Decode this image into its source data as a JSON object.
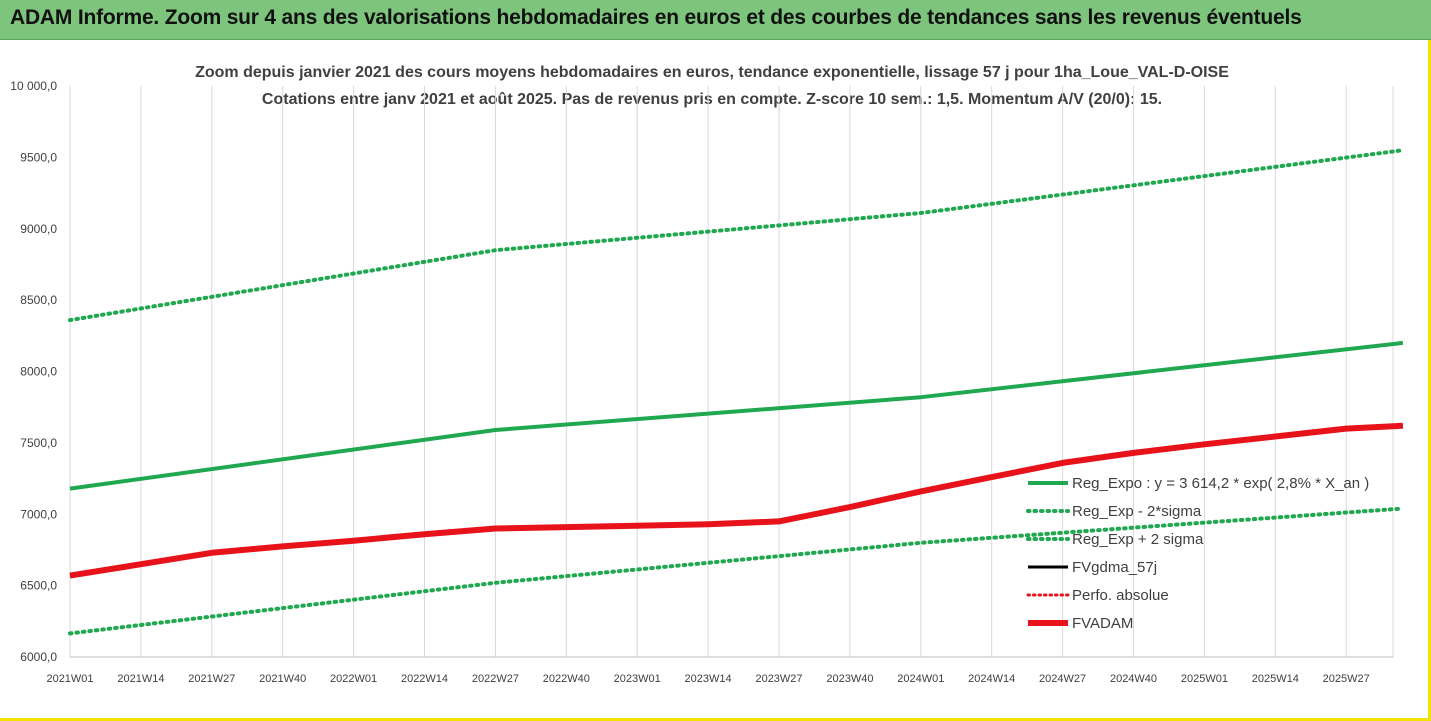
{
  "banner": {
    "title": "ADAM Informe. Zoom sur 4 ans des valorisations hebdomadaires en euros et des courbes de tendances sans les revenus éventuels"
  },
  "colors": {
    "banner_bg": "#7dc47d",
    "border": "#f2e200",
    "green": "#1fa84f",
    "red": "#e8131a",
    "black": "#000000",
    "grid": "#d9d9d9"
  },
  "chart_data": {
    "type": "line",
    "title_line1": "Zoom depuis janvier 2021 des cours moyens hebdomadaires en euros, tendance exponentielle, lissage 57 j pour 1ha_Loue_VAL-D-OISE",
    "title_line2": "Cotations entre janv 2021 et août 2025. Pas de revenus pris en compte. Z-score 10 sem.: 1,5. Momentum A/V (20/0): 15.",
    "x_tick_labels": [
      "2021W01",
      "2021W14",
      "2021W27",
      "2021W40",
      "2022W01",
      "2022W14",
      "2022W27",
      "2022W40",
      "2023W01",
      "2023W14",
      "2023W27",
      "2023W40",
      "2024W01",
      "2024W14",
      "2024W27",
      "2024W40",
      "2025W01",
      "2025W14",
      "2025W27"
    ],
    "y_tick_labels": [
      "6000,0",
      "6500,0",
      "7000,0",
      "7500,0",
      "8000,0",
      "8500,0",
      "9000,0",
      "9500,0",
      "10 000,0"
    ],
    "ylim": [
      6000,
      10000
    ],
    "xlim": [
      0,
      18.8
    ],
    "grid": "vertical",
    "legend_position": "bottom-right inside plot",
    "series": [
      {
        "name": "Reg_Expo : y = 3 614,2 * exp( 2,8% *  X_an )",
        "style": "solid-green",
        "x": [
          0,
          6,
          12,
          18.8
        ],
        "y": [
          7180,
          7590,
          7820,
          8200
        ]
      },
      {
        "name": "Reg_Exp - 2*sigma",
        "style": "dotted-green",
        "x": [
          0,
          6,
          12,
          18.8
        ],
        "y": [
          6165,
          6520,
          6800,
          7040
        ]
      },
      {
        "name": "Reg_Exp + 2 sigma",
        "style": "dotted-green",
        "x": [
          0,
          6,
          12,
          18.8
        ],
        "y": [
          8360,
          8850,
          9110,
          9550
        ]
      },
      {
        "name": "FVgdma_57j",
        "style": "solid-black-thin",
        "x": [
          0,
          1,
          2,
          3,
          4,
          5,
          6,
          7,
          8,
          9,
          10,
          11,
          12,
          13,
          14,
          15,
          16,
          17,
          18,
          18.8
        ],
        "y": [
          6570,
          6650,
          6730,
          6775,
          6815,
          6860,
          6900,
          6910,
          6920,
          6930,
          6960,
          7050,
          7160,
          7260,
          7360,
          7430,
          7490,
          7545,
          7600,
          7620
        ]
      },
      {
        "name": "Perfo. absolue",
        "style": "dotted-red",
        "x": [],
        "y": []
      },
      {
        "name": "FVADAM",
        "style": "solid-red-thick",
        "x": [
          0,
          1,
          2,
          3,
          4,
          5,
          6,
          7,
          8,
          9,
          10,
          11,
          12,
          13,
          14,
          15,
          16,
          17,
          18,
          18.8
        ],
        "y": [
          6570,
          6650,
          6730,
          6775,
          6815,
          6860,
          6900,
          6910,
          6920,
          6930,
          6950,
          7050,
          7160,
          7260,
          7360,
          7430,
          7490,
          7545,
          7600,
          7620
        ]
      }
    ]
  }
}
